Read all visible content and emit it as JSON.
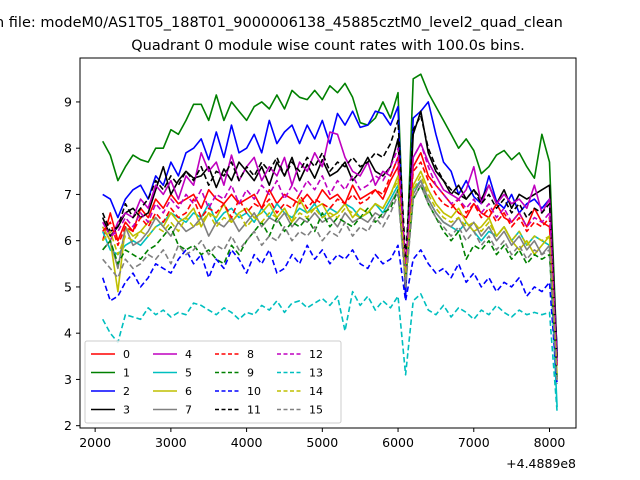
{
  "chart_data": {
    "type": "line",
    "suptitle": "n file: modeM0/AS1T05_188T01_9000006138_45885cztM0_level2_quad_clean",
    "title": "Quadrant 0 module wise count rates with 100.0s bins.",
    "xlabel": "",
    "ylabel": "",
    "x_offset_label": "+4.4889e8",
    "xlim": [
      1800,
      8350
    ],
    "ylim": [
      1.95,
      9.95
    ],
    "x_ticks": [
      2000,
      3000,
      4000,
      5000,
      6000,
      7000,
      8000
    ],
    "x_tick_labels": [
      "2000",
      "3000",
      "4000",
      "5000",
      "6000",
      "7000",
      "8000"
    ],
    "y_ticks": [
      2,
      3,
      4,
      5,
      6,
      7,
      8,
      9
    ],
    "y_tick_labels": [
      "2",
      "3",
      "4",
      "5",
      "6",
      "7",
      "8",
      "9"
    ],
    "x": [
      2100,
      2200,
      2300,
      2400,
      2500,
      2600,
      2700,
      2800,
      2900,
      3000,
      3100,
      3200,
      3300,
      3400,
      3500,
      3600,
      3700,
      3800,
      3900,
      4000,
      4100,
      4200,
      4300,
      4400,
      4500,
      4600,
      4700,
      4800,
      4900,
      5000,
      5100,
      5200,
      5300,
      5400,
      5500,
      5600,
      5700,
      5800,
      5900,
      6000,
      6100,
      6200,
      6300,
      6400,
      6500,
      6600,
      6700,
      6800,
      6900,
      7000,
      7100,
      7200,
      7300,
      7400,
      7500,
      7600,
      7700,
      7800,
      7900,
      8000,
      8100
    ],
    "legend_location": "lower-left",
    "legend_columns": 4,
    "series": [
      {
        "name": "0",
        "color": "#ff0000",
        "dash": "solid",
        "values": [
          6.0,
          6.6,
          6.0,
          6.4,
          6.2,
          6.7,
          6.5,
          6.9,
          6.7,
          7.0,
          6.8,
          6.9,
          7.0,
          6.7,
          7.1,
          6.9,
          6.8,
          7.0,
          6.8,
          6.9,
          7.0,
          6.7,
          7.1,
          6.8,
          7.0,
          6.9,
          6.8,
          7.0,
          6.8,
          7.1,
          6.9,
          7.0,
          6.8,
          7.2,
          6.9,
          7.0,
          7.1,
          6.9,
          7.3,
          7.6,
          5.4,
          7.6,
          7.9,
          7.4,
          7.2,
          7.0,
          6.8,
          6.6,
          6.5,
          6.8,
          6.6,
          6.5,
          6.8,
          6.5,
          6.4,
          6.6,
          6.3,
          6.7,
          6.4,
          6.3,
          3.3
        ]
      },
      {
        "name": "1",
        "color": "#008000",
        "dash": "solid",
        "values": [
          8.15,
          7.85,
          7.3,
          7.6,
          7.85,
          7.75,
          7.7,
          8.0,
          8.0,
          8.4,
          8.3,
          8.6,
          8.95,
          8.95,
          8.6,
          9.15,
          8.6,
          9.0,
          8.8,
          8.6,
          8.9,
          9.0,
          8.85,
          9.15,
          8.85,
          9.25,
          9.1,
          9.05,
          9.25,
          9.05,
          9.35,
          9.2,
          9.4,
          9.1,
          8.55,
          8.5,
          8.65,
          9.0,
          8.65,
          9.2,
          5.0,
          9.5,
          9.6,
          9.2,
          8.9,
          8.6,
          8.3,
          8.0,
          8.2,
          7.95,
          7.45,
          7.6,
          7.85,
          7.95,
          7.75,
          7.9,
          7.6,
          7.35,
          8.3,
          7.7,
          3.5
        ]
      },
      {
        "name": "2",
        "color": "#0000ff",
        "dash": "solid",
        "values": [
          7.0,
          6.9,
          6.5,
          6.9,
          7.1,
          7.2,
          6.9,
          7.4,
          7.2,
          7.7,
          7.4,
          7.9,
          8.0,
          8.2,
          7.75,
          8.35,
          7.8,
          8.5,
          7.9,
          8.0,
          8.3,
          7.9,
          8.6,
          8.1,
          8.35,
          8.5,
          8.1,
          8.5,
          8.2,
          8.6,
          8.1,
          8.75,
          8.5,
          8.8,
          8.45,
          8.5,
          8.8,
          8.75,
          8.5,
          8.9,
          4.8,
          8.65,
          8.8,
          9.0,
          8.3,
          7.7,
          7.5,
          7.0,
          7.3,
          6.95,
          6.8,
          7.4,
          6.85,
          6.7,
          7.0,
          6.6,
          6.8,
          6.9,
          6.7,
          6.9,
          3.6
        ]
      },
      {
        "name": "3",
        "color": "#000000",
        "dash": "solid",
        "values": [
          6.5,
          6.1,
          6.3,
          6.6,
          6.7,
          6.5,
          6.6,
          7.1,
          7.6,
          7.0,
          7.3,
          7.5,
          7.35,
          7.4,
          7.6,
          7.15,
          7.55,
          7.3,
          7.7,
          7.5,
          7.3,
          7.6,
          7.2,
          7.7,
          7.4,
          7.8,
          7.3,
          7.65,
          7.35,
          7.75,
          7.4,
          7.5,
          7.7,
          7.3,
          7.5,
          7.8,
          7.5,
          7.4,
          7.6,
          8.2,
          5.0,
          8.3,
          8.8,
          7.9,
          7.5,
          7.3,
          7.0,
          7.2,
          6.9,
          7.1,
          6.9,
          7.2,
          6.8,
          7.1,
          6.7,
          7.0,
          6.9,
          7.0,
          7.1,
          7.2,
          3.5
        ]
      },
      {
        "name": "4",
        "color": "#bf00bf",
        "dash": "solid",
        "values": [
          6.3,
          6.0,
          6.4,
          6.6,
          6.5,
          6.9,
          6.7,
          7.2,
          7.0,
          7.3,
          6.9,
          7.4,
          7.2,
          7.9,
          7.5,
          7.7,
          7.2,
          7.85,
          7.3,
          7.6,
          7.8,
          7.3,
          7.6,
          7.4,
          7.8,
          7.2,
          7.7,
          7.5,
          7.9,
          7.6,
          8.35,
          8.3,
          7.8,
          7.5,
          7.4,
          7.7,
          7.2,
          7.5,
          7.4,
          7.8,
          5.3,
          7.8,
          8.1,
          7.7,
          7.4,
          7.1,
          7.0,
          6.9,
          7.1,
          7.6,
          6.8,
          7.2,
          6.8,
          7.0,
          6.8,
          6.9,
          6.7,
          7.2,
          6.6,
          6.9,
          3.4
        ]
      },
      {
        "name": "5",
        "color": "#00bfbf",
        "dash": "solid",
        "values": [
          6.2,
          5.8,
          5.7,
          5.9,
          6.0,
          5.9,
          6.1,
          6.3,
          6.4,
          6.6,
          6.5,
          6.4,
          6.6,
          6.5,
          6.8,
          6.4,
          6.6,
          6.7,
          6.5,
          6.6,
          6.4,
          6.7,
          6.5,
          6.8,
          6.6,
          6.5,
          6.7,
          6.6,
          6.8,
          6.5,
          6.7,
          6.6,
          6.8,
          6.7,
          6.5,
          6.6,
          6.8,
          6.6,
          6.9,
          7.2,
          5.3,
          7.1,
          7.3,
          6.9,
          6.6,
          6.4,
          6.3,
          6.2,
          6.4,
          6.2,
          6.0,
          6.2,
          6.1,
          6.3,
          6.0,
          6.2,
          5.9,
          6.1,
          6.0,
          5.9,
          2.4
        ]
      },
      {
        "name": "6",
        "color": "#bfbf00",
        "dash": "solid",
        "values": [
          6.3,
          6.0,
          4.9,
          6.3,
          6.1,
          6.2,
          6.4,
          6.5,
          6.3,
          6.6,
          6.4,
          6.5,
          6.7,
          6.3,
          6.6,
          6.5,
          6.8,
          6.4,
          6.6,
          6.7,
          6.5,
          6.6,
          6.8,
          6.5,
          6.7,
          6.4,
          6.9,
          6.6,
          6.7,
          6.8,
          6.5,
          6.6,
          6.8,
          6.5,
          6.7,
          6.6,
          6.8,
          6.7,
          7.0,
          7.4,
          5.2,
          7.2,
          7.5,
          7.1,
          6.8,
          6.6,
          6.5,
          6.7,
          6.4,
          6.2,
          6.3,
          6.5,
          6.1,
          6.3,
          6.0,
          5.8,
          6.0,
          5.7,
          5.9,
          6.1,
          3.0
        ]
      },
      {
        "name": "7",
        "color": "#808080",
        "dash": "solid",
        "values": [
          5.8,
          6.0,
          5.4,
          6.3,
          5.9,
          6.0,
          6.2,
          6.5,
          6.3,
          6.1,
          6.4,
          6.2,
          6.3,
          6.5,
          6.1,
          6.4,
          6.3,
          6.5,
          6.2,
          6.4,
          6.6,
          6.3,
          6.5,
          6.4,
          6.6,
          6.3,
          6.5,
          6.4,
          6.6,
          6.4,
          6.5,
          6.3,
          6.6,
          6.4,
          6.5,
          6.4,
          6.6,
          6.5,
          6.8,
          7.1,
          5.1,
          7.0,
          7.3,
          6.9,
          6.6,
          6.4,
          6.3,
          6.5,
          6.2,
          6.4,
          6.1,
          6.3,
          6.0,
          6.2,
          5.9,
          6.1,
          5.8,
          6.0,
          5.7,
          5.9,
          3.0
        ]
      },
      {
        "name": "8",
        "color": "#ff0000",
        "dash": "dashed",
        "values": [
          6.2,
          6.4,
          5.9,
          6.3,
          6.2,
          6.5,
          6.3,
          6.6,
          6.4,
          6.7,
          6.5,
          6.6,
          6.9,
          6.5,
          6.7,
          6.6,
          6.8,
          6.5,
          6.9,
          6.6,
          6.8,
          6.7,
          6.9,
          6.6,
          6.8,
          6.7,
          7.0,
          6.7,
          6.9,
          6.8,
          6.7,
          6.9,
          6.8,
          7.0,
          6.8,
          6.9,
          7.1,
          7.0,
          7.4,
          7.8,
          5.5,
          7.5,
          7.7,
          7.3,
          7.0,
          6.8,
          6.7,
          6.9,
          6.6,
          6.8,
          6.5,
          6.7,
          6.4,
          6.6,
          6.3,
          6.5,
          6.2,
          6.4,
          6.3,
          6.5,
          3.3
        ]
      },
      {
        "name": "9",
        "color": "#008000",
        "dash": "dashed",
        "values": [
          5.8,
          6.0,
          5.5,
          5.8,
          5.7,
          5.6,
          5.8,
          5.9,
          6.1,
          6.3,
          5.9,
          5.8,
          5.9,
          5.7,
          5.8,
          5.6,
          5.5,
          5.9,
          5.7,
          6.0,
          6.2,
          6.4,
          6.1,
          6.5,
          6.2,
          6.4,
          6.3,
          6.5,
          6.2,
          6.6,
          6.3,
          6.5,
          6.4,
          6.3,
          6.5,
          6.7,
          6.4,
          6.6,
          6.7,
          7.1,
          5.2,
          6.9,
          7.2,
          6.8,
          6.5,
          6.2,
          6.0,
          6.2,
          5.6,
          5.9,
          5.8,
          6.0,
          5.7,
          5.9,
          5.6,
          5.8,
          5.5,
          5.7,
          5.6,
          5.7,
          3.0
        ]
      },
      {
        "name": "10",
        "color": "#0000ff",
        "dash": "dashed",
        "values": [
          5.2,
          4.7,
          4.8,
          5.1,
          5.3,
          5.0,
          5.2,
          5.5,
          5.4,
          5.3,
          5.6,
          5.8,
          5.5,
          5.7,
          5.2,
          5.6,
          5.4,
          5.8,
          5.6,
          5.3,
          5.7,
          5.5,
          5.8,
          5.3,
          5.4,
          5.7,
          5.5,
          5.9,
          5.6,
          5.8,
          5.5,
          5.7,
          5.6,
          5.8,
          5.5,
          5.4,
          5.7,
          5.5,
          5.6,
          5.9,
          4.7,
          5.6,
          5.8,
          5.5,
          5.3,
          5.4,
          5.2,
          5.5,
          5.1,
          5.3,
          5.0,
          5.2,
          4.9,
          5.1,
          5.0,
          5.2,
          4.8,
          5.0,
          4.9,
          5.1,
          2.9
        ]
      },
      {
        "name": "11",
        "color": "#000000",
        "dash": "dashed",
        "values": [
          6.6,
          6.2,
          6.3,
          6.8,
          6.5,
          6.7,
          6.9,
          7.3,
          7.1,
          7.4,
          7.2,
          7.5,
          7.3,
          7.6,
          7.2,
          7.5,
          7.4,
          7.7,
          7.3,
          7.6,
          7.4,
          7.7,
          7.5,
          7.8,
          7.4,
          7.7,
          7.5,
          7.8,
          7.6,
          7.9,
          7.5,
          7.7,
          7.6,
          7.8,
          7.6,
          7.7,
          7.9,
          7.8,
          8.1,
          8.6,
          5.6,
          8.4,
          8.7,
          8.0,
          7.6,
          7.3,
          7.1,
          7.0,
          6.9,
          7.1,
          6.8,
          7.0,
          6.7,
          6.9,
          6.6,
          6.8,
          6.5,
          6.7,
          6.6,
          6.8,
          3.4
        ]
      },
      {
        "name": "12",
        "color": "#bf00bf",
        "dash": "dashed",
        "values": [
          6.4,
          6.1,
          6.2,
          6.5,
          6.3,
          6.6,
          6.4,
          6.8,
          6.6,
          6.9,
          6.7,
          7.0,
          6.8,
          7.1,
          6.7,
          7.0,
          6.9,
          7.2,
          6.8,
          7.1,
          6.9,
          7.2,
          7.0,
          7.3,
          6.9,
          7.2,
          7.0,
          7.3,
          7.1,
          7.4,
          7.0,
          7.3,
          7.1,
          7.4,
          7.1,
          7.2,
          7.4,
          7.3,
          7.6,
          8.0,
          5.4,
          7.8,
          8.1,
          7.6,
          7.2,
          7.0,
          6.8,
          6.9,
          6.7,
          6.9,
          6.6,
          6.8,
          6.5,
          6.7,
          6.4,
          6.6,
          6.3,
          6.5,
          6.4,
          6.6,
          3.3
        ]
      },
      {
        "name": "13",
        "color": "#00bfbf",
        "dash": "dashed",
        "values": [
          4.3,
          4.0,
          3.8,
          4.4,
          4.35,
          4.3,
          4.55,
          4.4,
          4.5,
          4.35,
          4.45,
          4.4,
          4.65,
          4.6,
          4.5,
          4.4,
          4.55,
          4.45,
          4.3,
          4.45,
          4.4,
          4.6,
          4.5,
          4.7,
          4.45,
          4.65,
          4.7,
          4.55,
          4.65,
          4.75,
          4.6,
          4.8,
          4.05,
          4.9,
          4.6,
          4.8,
          4.5,
          4.7,
          4.55,
          4.8,
          3.1,
          4.7,
          4.85,
          4.5,
          4.4,
          4.6,
          4.35,
          4.55,
          4.45,
          4.3,
          4.5,
          4.4,
          4.6,
          4.45,
          4.35,
          4.5,
          4.4,
          4.45,
          4.4,
          4.45,
          2.3
        ]
      },
      {
        "name": "14",
        "color": "#bfbf00",
        "dash": "dashed",
        "values": [
          6.0,
          6.2,
          5.7,
          6.1,
          6.0,
          6.2,
          6.1,
          6.3,
          6.2,
          6.4,
          6.2,
          6.5,
          6.3,
          6.4,
          6.6,
          6.3,
          6.5,
          6.4,
          6.6,
          6.3,
          6.5,
          6.4,
          6.6,
          6.5,
          6.7,
          6.4,
          6.6,
          6.5,
          6.7,
          6.5,
          6.6,
          6.5,
          6.7,
          6.6,
          6.5,
          6.6,
          6.8,
          6.7,
          7.0,
          7.3,
          5.2,
          7.1,
          7.4,
          7.0,
          6.7,
          6.5,
          6.4,
          6.5,
          6.3,
          6.4,
          6.2,
          6.4,
          6.1,
          6.3,
          6.0,
          6.2,
          5.9,
          6.1,
          6.0,
          6.1,
          3.1
        ]
      },
      {
        "name": "15",
        "color": "#808080",
        "dash": "dashed",
        "values": [
          5.6,
          5.4,
          5.2,
          5.6,
          5.4,
          5.5,
          5.7,
          5.6,
          5.8,
          5.5,
          5.9,
          5.7,
          5.8,
          6.0,
          5.7,
          5.9,
          5.8,
          6.1,
          5.8,
          6.0,
          6.2,
          5.9,
          6.1,
          6.0,
          6.3,
          6.0,
          6.2,
          6.1,
          6.3,
          6.0,
          6.2,
          6.1,
          6.4,
          6.1,
          6.3,
          6.2,
          6.5,
          6.3,
          6.6,
          7.0,
          5.0,
          6.9,
          7.2,
          6.8,
          6.5,
          6.3,
          6.1,
          6.3,
          6.0,
          6.2,
          5.9,
          6.1,
          5.8,
          6.0,
          5.7,
          5.9,
          5.6,
          5.8,
          5.7,
          5.8,
          2.9
        ]
      }
    ]
  }
}
